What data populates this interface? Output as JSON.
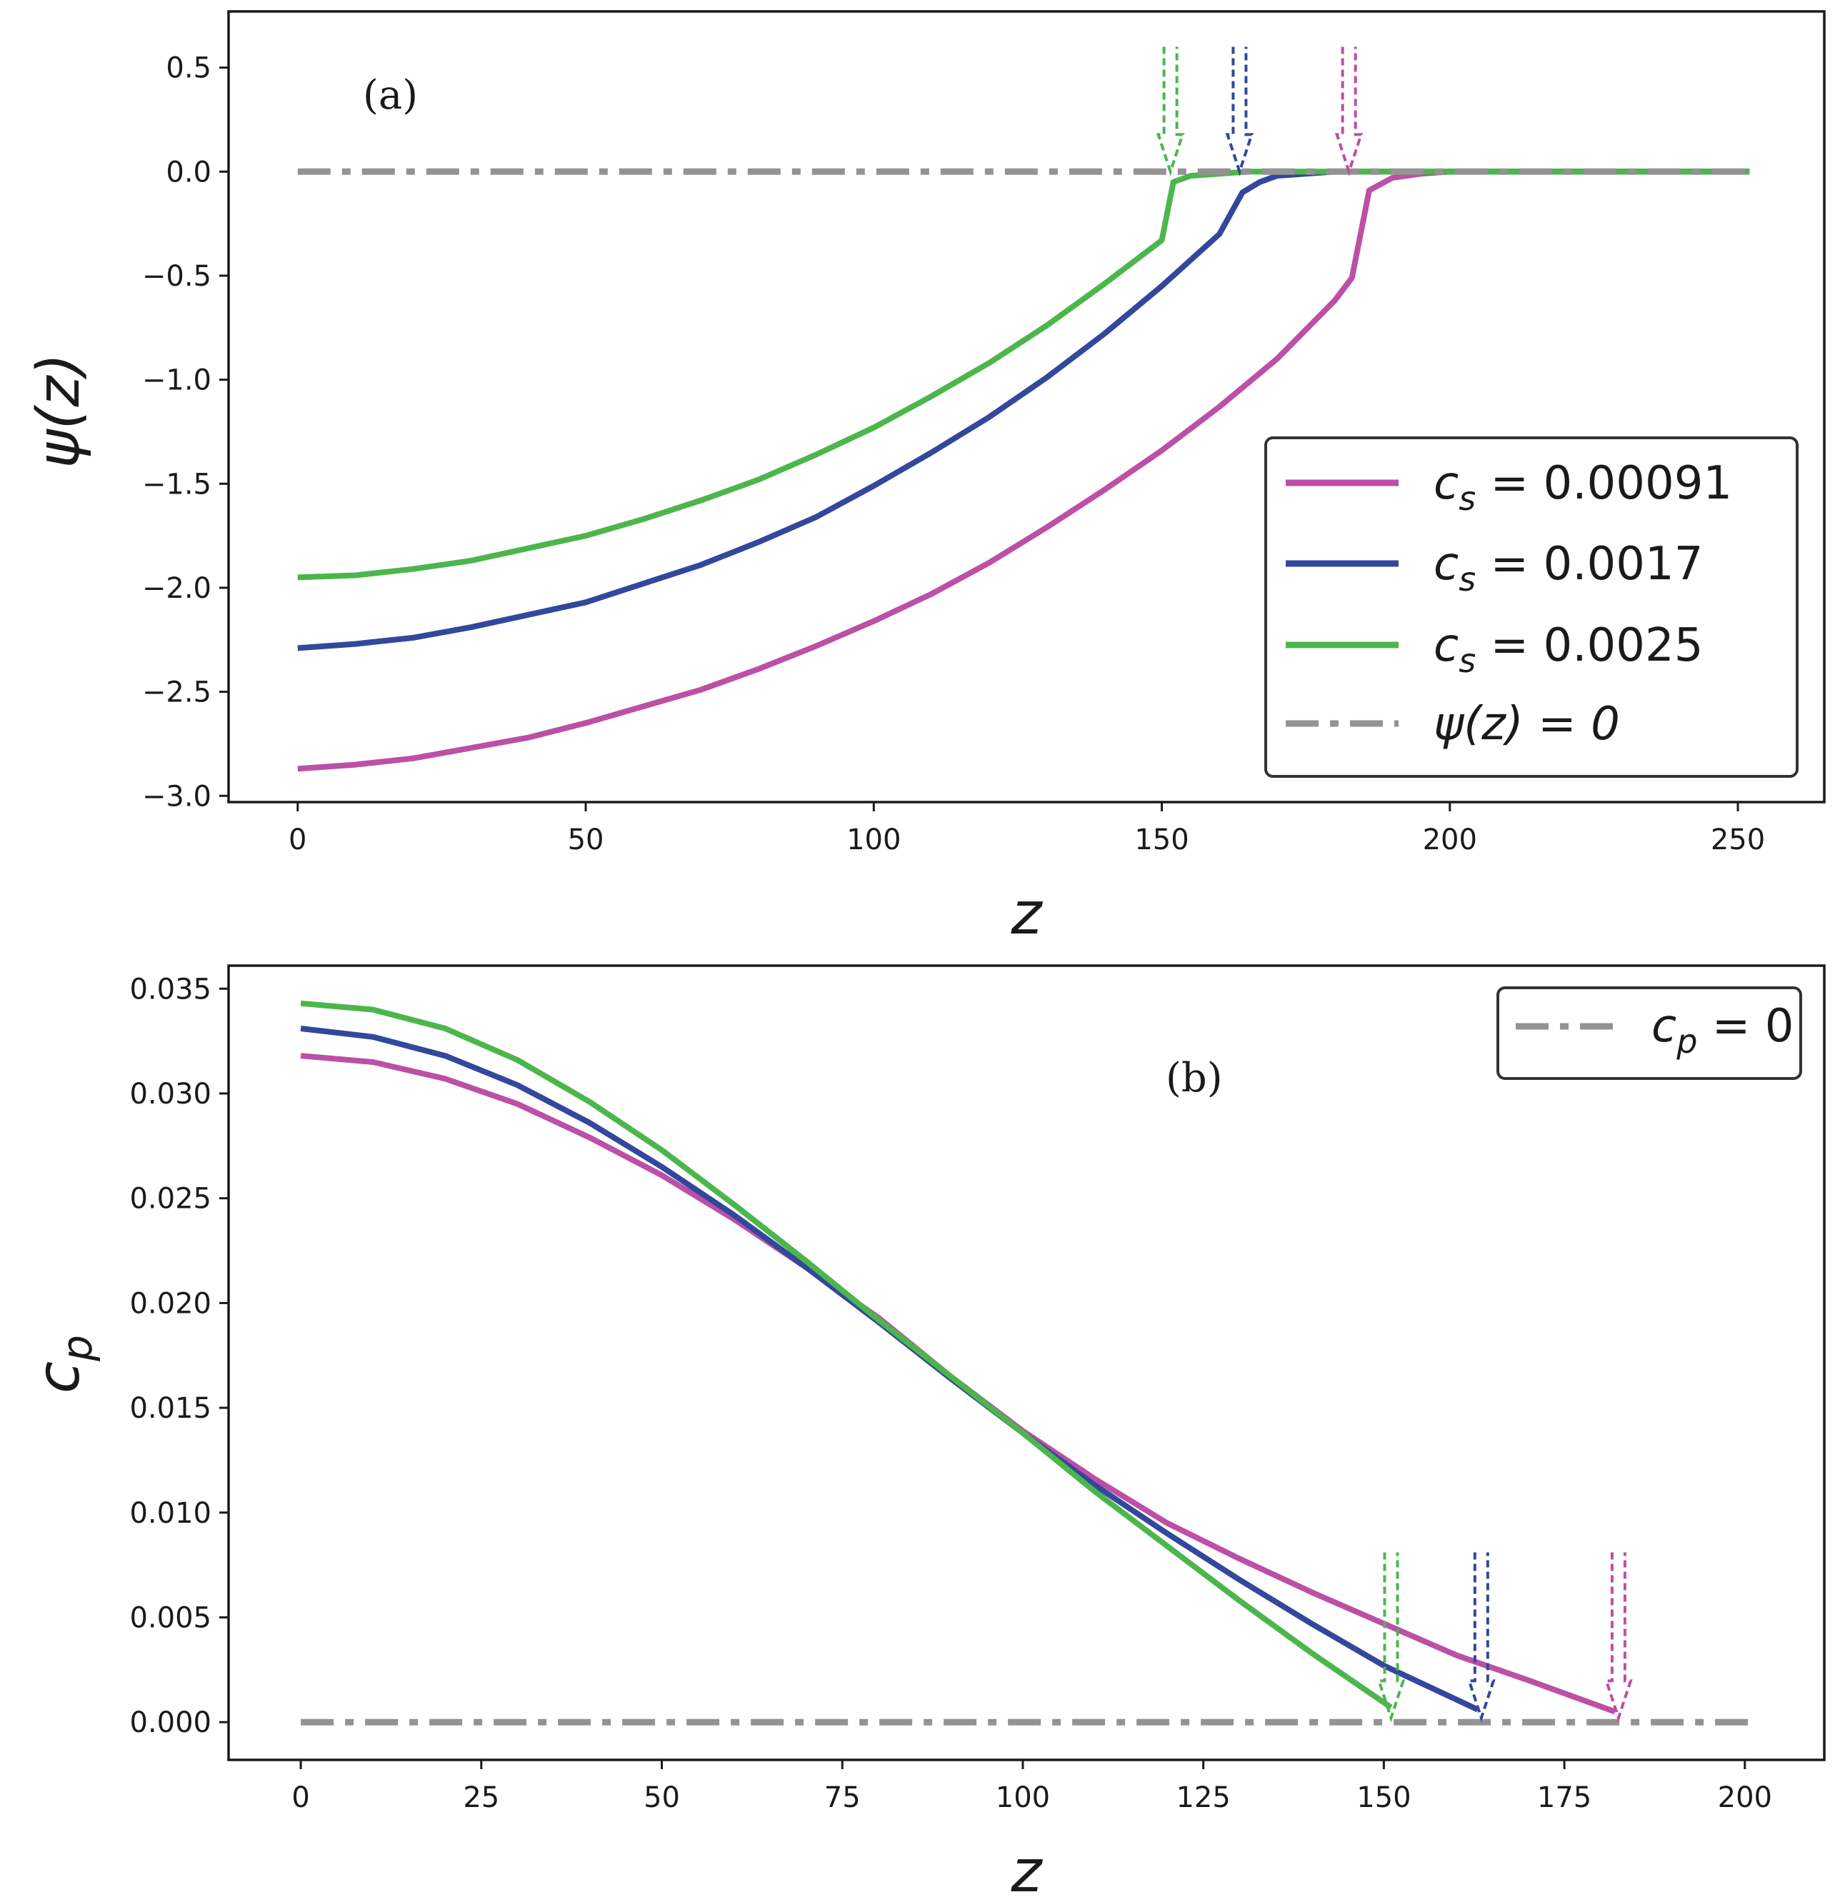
{
  "chart_data": [
    {
      "type": "line",
      "panel_label": "(a)",
      "xlabel": "z",
      "ylabel": "ψ(z)",
      "xlim": [
        -12,
        265
      ],
      "ylim": [
        -3.03,
        0.77
      ],
      "xticks": [
        0,
        50,
        100,
        150,
        200,
        250
      ],
      "yticks": [
        0.5,
        0.0,
        -0.5,
        -1.0,
        -1.5,
        -2.0,
        -2.5,
        -3.0
      ],
      "xtick_labels": [
        "0",
        "50",
        "100",
        "150",
        "200",
        "250"
      ],
      "ytick_labels": [
        "0.5",
        "0.0",
        "−0.5",
        "−1.0",
        "−1.5",
        "−2.0",
        "−2.5",
        "−3.0"
      ],
      "legend_position": "lower-right",
      "series": [
        {
          "name": "c_s = 0.00091",
          "legend_main": "c",
          "legend_sub": "s",
          "legend_rest": " = 0.00091",
          "color": "#bc4fa6",
          "style": "solid",
          "x": [
            0,
            10,
            20,
            30,
            40,
            50,
            60,
            70,
            80,
            90,
            100,
            110,
            120,
            130,
            140,
            150,
            160,
            170,
            180,
            183,
            186,
            190,
            195,
            200,
            252
          ],
          "y": [
            -2.87,
            -2.85,
            -2.82,
            -2.77,
            -2.72,
            -2.65,
            -2.57,
            -2.49,
            -2.39,
            -2.28,
            -2.16,
            -2.03,
            -1.88,
            -1.71,
            -1.53,
            -1.34,
            -1.13,
            -0.9,
            -0.62,
            -0.51,
            -0.09,
            -0.03,
            -0.01,
            0.0,
            0.0
          ]
        },
        {
          "name": "c_s = 0.0017",
          "legend_main": "c",
          "legend_sub": "s",
          "legend_rest": " = 0.0017",
          "color": "#33479c",
          "style": "solid",
          "x": [
            0,
            10,
            20,
            30,
            40,
            50,
            60,
            70,
            80,
            90,
            100,
            110,
            120,
            130,
            140,
            150,
            160,
            164,
            167,
            170,
            175,
            180,
            252
          ],
          "y": [
            -2.29,
            -2.27,
            -2.24,
            -2.19,
            -2.13,
            -2.07,
            -1.98,
            -1.89,
            -1.78,
            -1.66,
            -1.51,
            -1.35,
            -1.18,
            -0.99,
            -0.78,
            -0.55,
            -0.3,
            -0.1,
            -0.05,
            -0.02,
            -0.01,
            0.0,
            0.0
          ]
        },
        {
          "name": "c_s = 0.0025",
          "legend_main": "c",
          "legend_sub": "s",
          "legend_rest": " = 0.0025",
          "color": "#4cb64c",
          "style": "solid",
          "x": [
            0,
            10,
            20,
            30,
            40,
            50,
            60,
            70,
            80,
            90,
            100,
            110,
            120,
            130,
            140,
            150,
            152,
            155,
            160,
            165,
            252
          ],
          "y": [
            -1.95,
            -1.94,
            -1.91,
            -1.87,
            -1.81,
            -1.75,
            -1.67,
            -1.58,
            -1.48,
            -1.36,
            -1.23,
            -1.08,
            -0.92,
            -0.74,
            -0.54,
            -0.33,
            -0.05,
            -0.02,
            -0.01,
            0.0,
            0.0
          ]
        },
        {
          "name": "ψ(z) = 0",
          "legend_main": "ψ(z) = 0",
          "legend_sub": "",
          "legend_rest": "",
          "color": "#939393",
          "style": "dashdot",
          "x": [
            0,
            252
          ],
          "y": [
            0,
            0
          ]
        }
      ],
      "annotations": [
        {
          "type": "arrow",
          "x": 151.5,
          "y_from": 0.6,
          "y_to": 0.0,
          "color": "#4cb64c"
        },
        {
          "type": "arrow",
          "x": 163.5,
          "y_from": 0.6,
          "y_to": 0.0,
          "color": "#33479c"
        },
        {
          "type": "arrow",
          "x": 182.5,
          "y_from": 0.6,
          "y_to": 0.0,
          "color": "#bc4fa6"
        }
      ]
    },
    {
      "type": "line",
      "panel_label": "(b)",
      "xlabel": "z",
      "ylabel": "c_p",
      "xlim": [
        -10,
        211
      ],
      "ylim": [
        -0.0018,
        0.0361
      ],
      "xticks": [
        0,
        25,
        50,
        75,
        100,
        125,
        150,
        175,
        200
      ],
      "yticks": [
        0.035,
        0.03,
        0.025,
        0.02,
        0.015,
        0.01,
        0.005,
        0.0
      ],
      "xtick_labels": [
        "0",
        "25",
        "50",
        "75",
        "100",
        "125",
        "150",
        "175",
        "200"
      ],
      "ytick_labels": [
        "0.035",
        "0.030",
        "0.025",
        "0.020",
        "0.015",
        "0.010",
        "0.005",
        "0.000"
      ],
      "legend_position": "upper-right",
      "legend_entry": {
        "main": "c",
        "sub": "p",
        "rest": " = 0"
      },
      "series": [
        {
          "name": "c_s = 0.00091",
          "color": "#bc4fa6",
          "style": "solid",
          "x": [
            0,
            10,
            20,
            30,
            40,
            50,
            60,
            70,
            80,
            90,
            100,
            110,
            120,
            130,
            140,
            150,
            160,
            170,
            182
          ],
          "y": [
            0.0318,
            0.0315,
            0.0307,
            0.0295,
            0.0279,
            0.0261,
            0.024,
            0.0217,
            0.0193,
            0.0165,
            0.0139,
            0.0116,
            0.0095,
            0.0078,
            0.0062,
            0.0047,
            0.0032,
            0.002,
            0.0005
          ]
        },
        {
          "name": "c_s = 0.0017",
          "color": "#33479c",
          "style": "solid",
          "x": [
            0,
            10,
            20,
            30,
            40,
            50,
            60,
            70,
            80,
            90,
            100,
            110,
            120,
            130,
            140,
            150,
            163
          ],
          "y": [
            0.0331,
            0.0327,
            0.0318,
            0.0304,
            0.0286,
            0.0265,
            0.0242,
            0.0217,
            0.0191,
            0.0164,
            0.0138,
            0.0113,
            0.009,
            0.0068,
            0.0047,
            0.0027,
            0.0006
          ]
        },
        {
          "name": "c_s = 0.0025",
          "color": "#4cb64c",
          "style": "solid",
          "x": [
            0,
            10,
            20,
            30,
            40,
            50,
            60,
            70,
            80,
            90,
            100,
            110,
            120,
            130,
            140,
            151
          ],
          "y": [
            0.0343,
            0.034,
            0.0331,
            0.0316,
            0.0296,
            0.0273,
            0.0247,
            0.022,
            0.0192,
            0.0165,
            0.0138,
            0.011,
            0.0084,
            0.0058,
            0.0033,
            0.0007
          ]
        },
        {
          "name": "c_p = 0",
          "color": "#939393",
          "style": "dashdot",
          "x": [
            0,
            201
          ],
          "y": [
            0,
            0
          ]
        }
      ],
      "annotations": [
        {
          "type": "arrow",
          "x": 151,
          "y_from": 0.0081,
          "y_to": 0.0002,
          "color": "#4cb64c"
        },
        {
          "type": "arrow",
          "x": 163.5,
          "y_from": 0.0081,
          "y_to": 0.0002,
          "color": "#33479c"
        },
        {
          "type": "arrow",
          "x": 182.5,
          "y_from": 0.0081,
          "y_to": 0.0002,
          "color": "#bc4fa6"
        }
      ]
    }
  ]
}
